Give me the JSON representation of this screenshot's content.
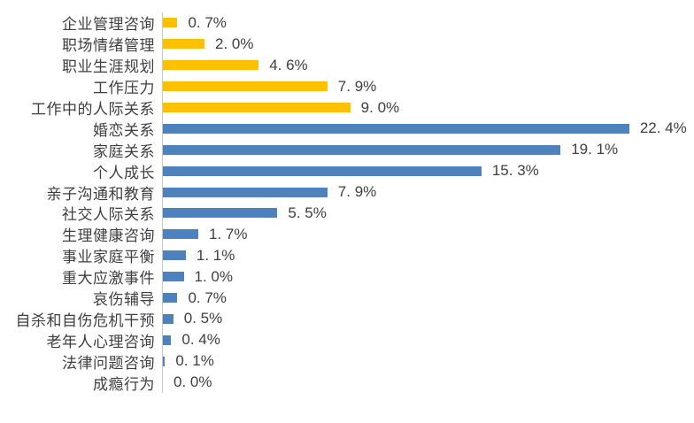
{
  "chart_data": {
    "type": "bar",
    "orientation": "horizontal",
    "title": "",
    "xlabel": "",
    "ylabel": "",
    "categories": [
      "企业管理咨询",
      "职场情绪管理",
      "职业生涯规划",
      "工作压力",
      "工作中的人际关系",
      "婚恋关系",
      "家庭关系",
      "个人成长",
      "亲子沟通和教育",
      "社交人际关系",
      "生理健康咨询",
      "事业家庭平衡",
      "重大应激事件",
      "哀伤辅导",
      "自杀和自伤危机干预",
      "老年人心理咨询",
      "法律问题咨询",
      "成瘾行为"
    ],
    "values": [
      0.7,
      2.0,
      4.6,
      7.9,
      9.0,
      22.4,
      19.1,
      15.3,
      7.9,
      5.5,
      1.7,
      1.1,
      1.0,
      0.7,
      0.5,
      0.4,
      0.1,
      0.0
    ],
    "value_labels": [
      "0. 7%",
      "2. 0%",
      "4. 6%",
      "7. 9%",
      "9. 0%",
      "22. 4%",
      "19. 1%",
      "15. 3%",
      "7. 9%",
      "5. 5%",
      "1. 7%",
      "1. 1%",
      "1. 0%",
      "0. 7%",
      "0. 5%",
      "0. 4%",
      "0. 1%",
      "0. 0%"
    ],
    "groups": [
      "work",
      "work",
      "work",
      "work",
      "work",
      "life",
      "life",
      "life",
      "life",
      "life",
      "life",
      "life",
      "life",
      "life",
      "life",
      "life",
      "life",
      "life"
    ],
    "colors": {
      "work": "#FFC000",
      "life": "#4F81BD"
    },
    "axis_line_color": "#C9C9C9",
    "text_color": "#3F3F3F",
    "xlim": [
      0,
      25
    ],
    "grid": false,
    "legend": "none",
    "data_labels": true
  }
}
